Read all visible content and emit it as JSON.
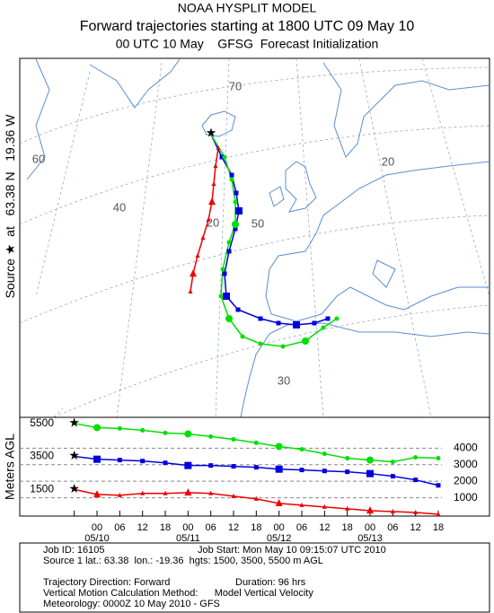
{
  "header": {
    "title": "NOAA HYSPLIT MODEL",
    "subtitle": "Forward trajectories starting at 1800 UTC 09 May 10",
    "line3": "00 UTC 10 May    GFSG  Forecast Initialization"
  },
  "source_label": {
    "word": "Source",
    "star": "★",
    "at": "at",
    "lat": "63.38 N",
    "lon": "19.36 W"
  },
  "map": {
    "grid_labels": [
      "70",
      "60",
      "40",
      "20",
      "50",
      "20",
      "30"
    ]
  },
  "chart_data": {
    "type": "line",
    "ylabel": "Meters AGL",
    "categories": [
      null,
      "00",
      "06",
      "12",
      "18",
      "00",
      "06",
      "12",
      "18",
      "00",
      "06",
      "12",
      "18",
      "00",
      "06",
      "12",
      "18"
    ],
    "date_labels": [
      "05/10",
      "05/11",
      "05/12",
      "05/13"
    ],
    "ylim": [
      0,
      5700
    ],
    "yticks": [
      1000,
      2000,
      3000,
      4000
    ],
    "grid": true,
    "series": [
      {
        "name": "5500",
        "color": "#00e000",
        "marker": "circle",
        "values": [
          5500,
          5240,
          5190,
          5080,
          4920,
          4860,
          4700,
          4530,
          4320,
          4100,
          3930,
          3660,
          3390,
          3280,
          3170,
          3440,
          3390
        ]
      },
      {
        "name": "3500",
        "color": "#0000dd",
        "marker": "square",
        "values": [
          3500,
          3330,
          3280,
          3220,
          3110,
          2950,
          2950,
          2900,
          2840,
          2730,
          2680,
          2620,
          2570,
          2460,
          2300,
          2080,
          1750
        ]
      },
      {
        "name": "1500",
        "color": "#ee0000",
        "marker": "triangle",
        "values": [
          1500,
          1200,
          1150,
          1260,
          1260,
          1310,
          1260,
          1090,
          930,
          660,
          550,
          440,
          330,
          220,
          160,
          110,
          0
        ]
      }
    ]
  },
  "footer": {
    "job_id": "Job ID: 16105",
    "job_start": "Job Start: Mon May 10 09:15:07 UTC 2010",
    "source": "Source 1 lat.: 63.38  lon.: -19.36  hgts: 1500, 3500, 5500 m AGL",
    "direction": "Trajectory Direction: Forward",
    "duration": "Duration: 96 hrs",
    "method": "Vertical Motion Calculation Method:      Model Vertical Velocity",
    "meteorology": "Meteorology: 0000Z 10 May 2010 - GFS"
  }
}
